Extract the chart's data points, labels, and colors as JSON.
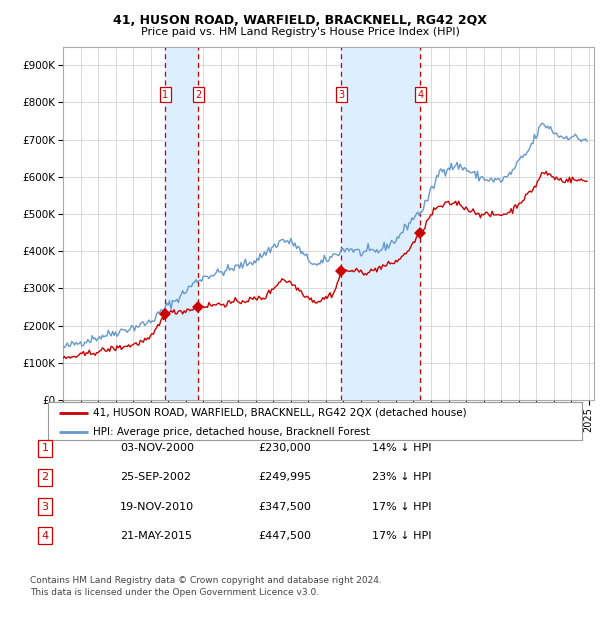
{
  "title": "41, HUSON ROAD, WARFIELD, BRACKNELL, RG42 2QX",
  "subtitle": "Price paid vs. HM Land Registry's House Price Index (HPI)",
  "legend_label_red": "41, HUSON ROAD, WARFIELD, BRACKNELL, RG42 2QX (detached house)",
  "legend_label_blue": "HPI: Average price, detached house, Bracknell Forest",
  "footer1": "Contains HM Land Registry data © Crown copyright and database right 2024.",
  "footer2": "This data is licensed under the Open Government Licence v3.0.",
  "table_rows": [
    [
      "1",
      "03-NOV-2000",
      "£230,000",
      "14% ↓ HPI"
    ],
    [
      "2",
      "25-SEP-2002",
      "£249,995",
      "23% ↓ HPI"
    ],
    [
      "3",
      "19-NOV-2010",
      "£347,500",
      "17% ↓ HPI"
    ],
    [
      "4",
      "21-MAY-2015",
      "£447,500",
      "17% ↓ HPI"
    ]
  ],
  "trans_dates": [
    2000.836,
    2002.729,
    2010.879,
    2015.388
  ],
  "trans_prices": [
    230000,
    249995,
    347500,
    447500
  ],
  "trans_labels": [
    "1",
    "2",
    "3",
    "4"
  ],
  "red_color": "#cc0000",
  "blue_color": "#6699cc",
  "highlight_color": "#ddeeff",
  "dashed_color": "#cc0000",
  "box_color": "#cc0000",
  "ylim": [
    0,
    950000
  ],
  "xlim_start": 1995.0,
  "xlim_end": 2025.3,
  "background_color": "#ffffff",
  "grid_color": "#cccccc"
}
